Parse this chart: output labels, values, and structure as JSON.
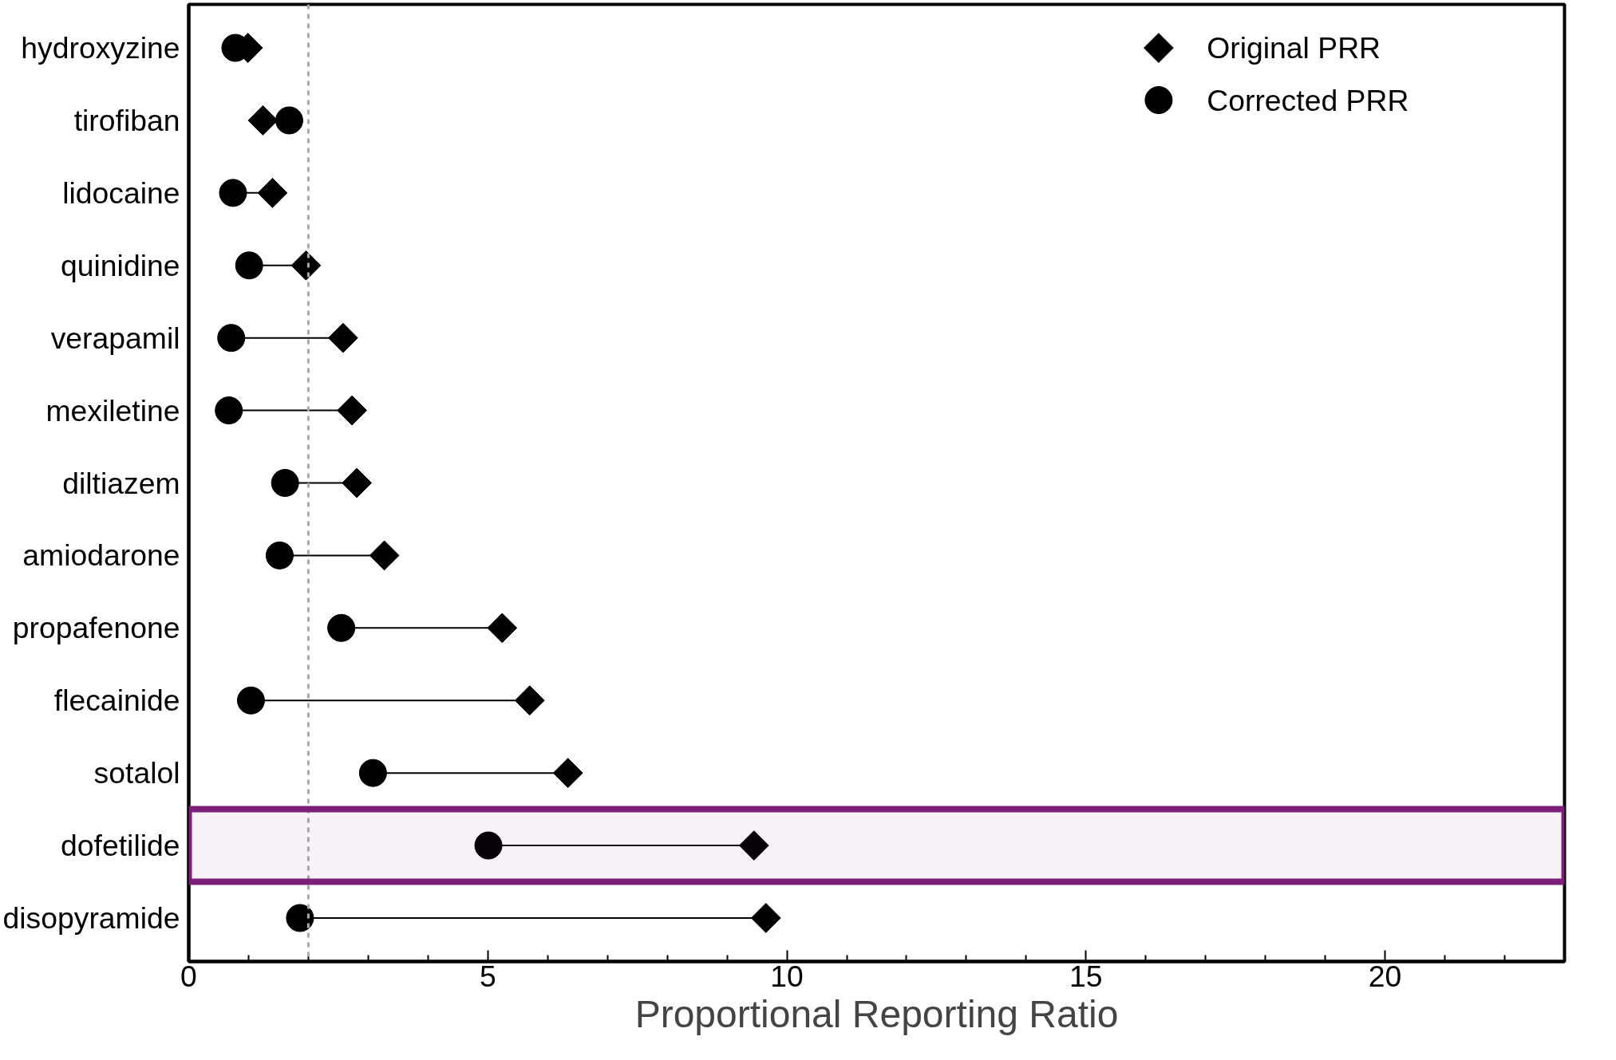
{
  "chart_data": {
    "type": "scatter",
    "orientation": "horizontal",
    "xlabel": "Proportional Reporting Ratio",
    "categories": [
      "hydroxyzine",
      "tirofiban",
      "lidocaine",
      "quinidine",
      "verapamil",
      "mexiletine",
      "diltiazem",
      "amiodarone",
      "propafenone",
      "flecainide",
      "sotalol",
      "dofetilide",
      "disopyramide"
    ],
    "series": [
      {
        "name": "Original PRR",
        "color": "#000000",
        "marker": "diamond",
        "values": [
          0.99,
          1.24,
          1.4,
          1.96,
          2.58,
          2.73,
          2.81,
          3.27,
          5.24,
          5.7,
          6.34,
          9.45,
          9.65
        ]
      },
      {
        "name": "Corrected PRR",
        "color": "#000000",
        "marker": "circle",
        "values": [
          0.78,
          1.68,
          0.74,
          1.01,
          0.71,
          0.67,
          1.61,
          1.52,
          2.55,
          1.04,
          3.08,
          5.01,
          1.86
        ]
      }
    ],
    "xlim": [
      0,
      23
    ],
    "xticks": [
      0,
      {
        "value": 1,
        "label": null
      },
      {
        "value": 2,
        "label": null
      },
      {
        "value": 3,
        "label": null
      },
      {
        "value": 4,
        "label": null
      },
      5,
      {
        "value": 6,
        "label": null
      },
      {
        "value": 7,
        "label": null
      },
      {
        "value": 8,
        "label": null
      },
      {
        "value": 9,
        "label": null
      },
      10,
      {
        "value": 11,
        "label": null
      },
      {
        "value": 12,
        "label": null
      },
      {
        "value": 13,
        "label": null
      },
      {
        "value": 14,
        "label": null
      },
      15,
      {
        "value": 16,
        "label": null
      },
      {
        "value": 17,
        "label": null
      },
      {
        "value": 18,
        "label": null
      },
      {
        "value": 19,
        "label": null
      },
      20,
      {
        "value": 21,
        "label": null
      },
      {
        "value": 22,
        "label": null
      }
    ],
    "ref_lines": [
      {
        "axis": "x",
        "value": 2,
        "color": "#aaaaaa",
        "line_style": "dashed"
      }
    ],
    "bands": [
      {
        "axis": "y",
        "from": "dofetilide",
        "to": "dofetilide",
        "color": "#7b1f7b"
      }
    ],
    "line_style": "solid",
    "grid": false,
    "legend": "top right"
  }
}
